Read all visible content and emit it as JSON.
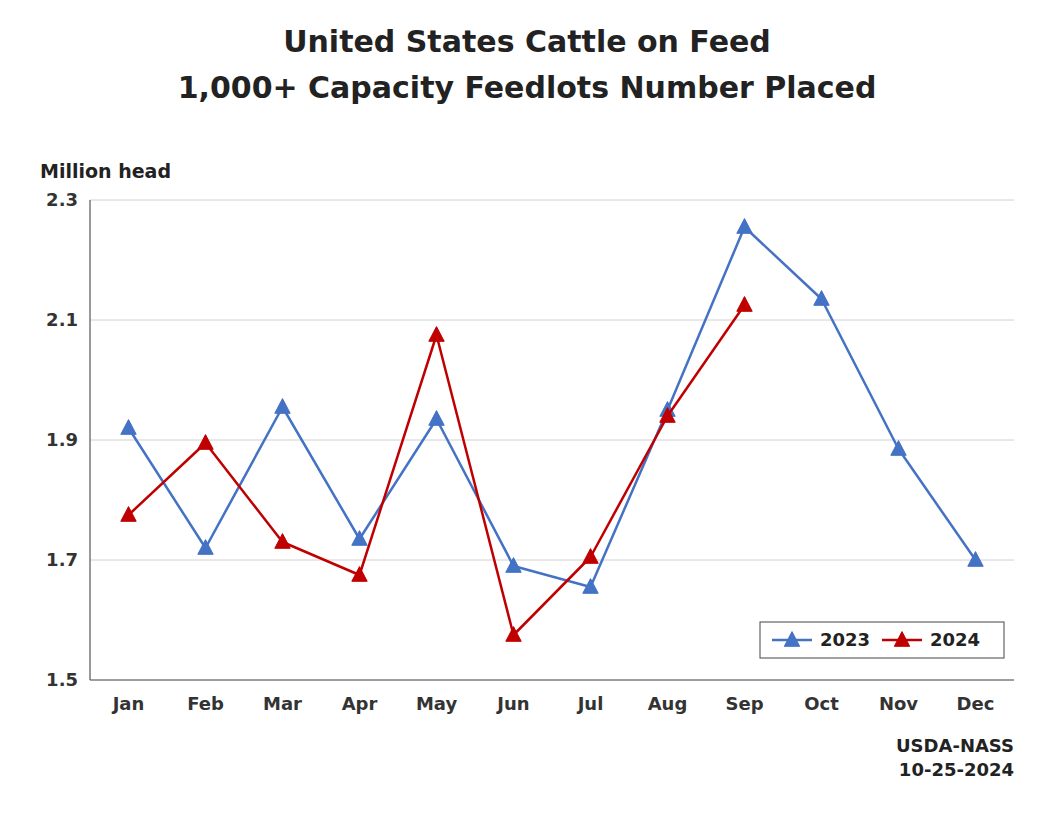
{
  "chart_data": {
    "type": "line",
    "title": "United States Cattle on Feed",
    "subtitle": "1,000+ Capacity Feedlots Number Placed",
    "y_label": "Million head",
    "categories": [
      "Jan",
      "Feb",
      "Mar",
      "Apr",
      "May",
      "Jun",
      "Jul",
      "Aug",
      "Sep",
      "Oct",
      "Nov",
      "Dec"
    ],
    "series": [
      {
        "name": "2023",
        "color": "#4472C4",
        "marker": "triangle",
        "values": [
          1.92,
          1.72,
          1.955,
          1.735,
          1.935,
          1.69,
          1.655,
          1.95,
          2.255,
          2.135,
          1.885,
          1.7
        ]
      },
      {
        "name": "2024",
        "color": "#C00000",
        "marker": "triangle",
        "values": [
          1.775,
          1.895,
          1.73,
          1.675,
          2.075,
          1.575,
          1.705,
          1.94,
          2.125,
          null,
          null,
          null
        ]
      }
    ],
    "ylim": [
      1.5,
      2.3
    ],
    "yticks": [
      1.5,
      1.7,
      1.9,
      2.1,
      2.3
    ],
    "grid": true,
    "legend": "lower right",
    "annotation": "USDA-NASS\n10-25-2024"
  }
}
